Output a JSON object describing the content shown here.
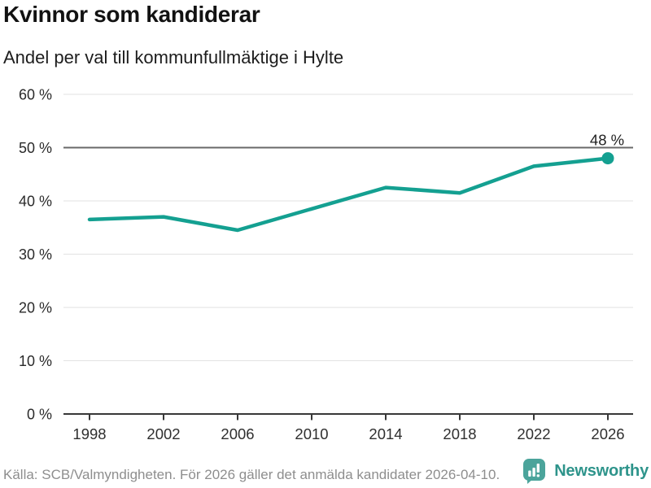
{
  "header": {
    "title": "Kvinnor som kandiderar",
    "subtitle": "Andel per val till kommunfullmäktige i Hylte"
  },
  "chart_data": {
    "type": "line",
    "title": "Kvinnor som kandiderar",
    "subtitle": "Andel per val till kommunfullmäktige i Hylte",
    "x": [
      1998,
      2002,
      2006,
      2010,
      2014,
      2018,
      2022,
      2026
    ],
    "xtick_labels": [
      "1998",
      "2002",
      "2006",
      "2010",
      "2014",
      "2018",
      "2022",
      "2026"
    ],
    "values": [
      36.5,
      37,
      34.5,
      38.5,
      42.5,
      41.5,
      46.5,
      48
    ],
    "ylim": [
      0,
      60
    ],
    "yticks": [
      0,
      10,
      20,
      30,
      40,
      50,
      60
    ],
    "ytick_labels": [
      "0 %",
      "10 %",
      "20 %",
      "30 %",
      "40 %",
      "50 %",
      "60 %"
    ],
    "grid": true,
    "highlight_gridline": 50,
    "legend": "none",
    "end_label": "48 %",
    "end_marker": "dot",
    "colors": {
      "line": "#14a091",
      "grid": "#e2e2e2",
      "grid_highlight": "#696969",
      "axis": "#383838",
      "tick_text": "#2a2a2a",
      "annotation_text": "#1f1f1f"
    }
  },
  "footer": {
    "source": "Källa: SCB/Valmyndigheten. För 2026 gäller det anmälda kandidater 2026-04-10.",
    "brand": "Newsworthy",
    "brand_color": "#2e948b",
    "brand_icon": "bar-chart-speech-bubble-icon",
    "brand_icon_color": "#4ba49b"
  }
}
